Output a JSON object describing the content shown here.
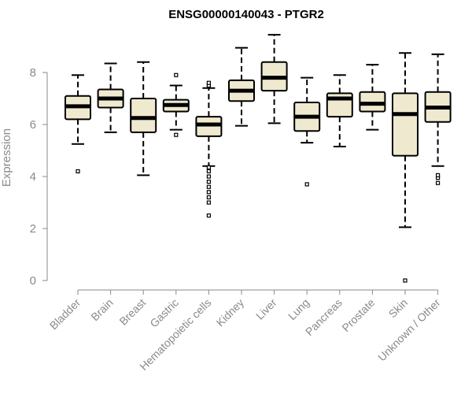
{
  "chart_data": {
    "type": "boxplot",
    "title": "ENSG00000140043 - PTGR2",
    "xlabel": "",
    "ylabel": "Expression",
    "ylim": [
      0,
      9.5
    ],
    "yticks": [
      0,
      2,
      4,
      6,
      8
    ],
    "box_fill": "#efe9cf",
    "box_stroke": "#000000",
    "axis_color": "#8a8a8a",
    "categories": [
      "Bladder",
      "Brain",
      "Breast",
      "Gastric",
      "Hematopoietic cells",
      "Kidney",
      "Liver",
      "Lung",
      "Pancreas",
      "Prostate",
      "Skin",
      "Unknown / Other"
    ],
    "series": [
      {
        "name": "Bladder",
        "whisker_low": 5.25,
        "q1": 6.2,
        "median": 6.7,
        "q3": 7.1,
        "whisker_high": 7.9,
        "outliers": [
          4.2
        ]
      },
      {
        "name": "Brain",
        "whisker_low": 5.7,
        "q1": 6.65,
        "median": 7.0,
        "q3": 7.35,
        "whisker_high": 8.35,
        "outliers": []
      },
      {
        "name": "Breast",
        "whisker_low": 4.05,
        "q1": 5.7,
        "median": 6.25,
        "q3": 7.0,
        "whisker_high": 8.4,
        "outliers": []
      },
      {
        "name": "Gastric",
        "whisker_low": 5.8,
        "q1": 6.5,
        "median": 6.75,
        "q3": 6.95,
        "whisker_high": 7.5,
        "outliers": [
          5.6,
          7.9
        ]
      },
      {
        "name": "Hematopoietic cells",
        "whisker_low": 4.4,
        "q1": 5.55,
        "median": 6.0,
        "q3": 6.3,
        "whisker_high": 7.4,
        "outliers": [
          2.5,
          3.0,
          3.2,
          3.4,
          3.6,
          3.8,
          4.0,
          4.2,
          4.35,
          7.5,
          7.6
        ]
      },
      {
        "name": "Kidney",
        "whisker_low": 5.95,
        "q1": 6.9,
        "median": 7.3,
        "q3": 7.7,
        "whisker_high": 8.95,
        "outliers": []
      },
      {
        "name": "Liver",
        "whisker_low": 6.05,
        "q1": 7.3,
        "median": 7.8,
        "q3": 8.4,
        "whisker_high": 9.45,
        "outliers": []
      },
      {
        "name": "Lung",
        "whisker_low": 5.3,
        "q1": 5.75,
        "median": 6.3,
        "q3": 6.85,
        "whisker_high": 7.8,
        "outliers": [
          3.7
        ]
      },
      {
        "name": "Pancreas",
        "whisker_low": 5.15,
        "q1": 6.3,
        "median": 7.0,
        "q3": 7.2,
        "whisker_high": 7.9,
        "outliers": []
      },
      {
        "name": "Prostate",
        "whisker_low": 5.8,
        "q1": 6.5,
        "median": 6.8,
        "q3": 7.25,
        "whisker_high": 8.3,
        "outliers": []
      },
      {
        "name": "Skin",
        "whisker_low": 2.05,
        "q1": 4.8,
        "median": 6.4,
        "q3": 7.2,
        "whisker_high": 8.75,
        "outliers": [
          0.0
        ]
      },
      {
        "name": "Unknown / Other",
        "whisker_low": 4.4,
        "q1": 6.1,
        "median": 6.65,
        "q3": 7.25,
        "whisker_high": 8.7,
        "outliers": [
          3.75,
          3.95,
          4.05
        ]
      }
    ]
  }
}
